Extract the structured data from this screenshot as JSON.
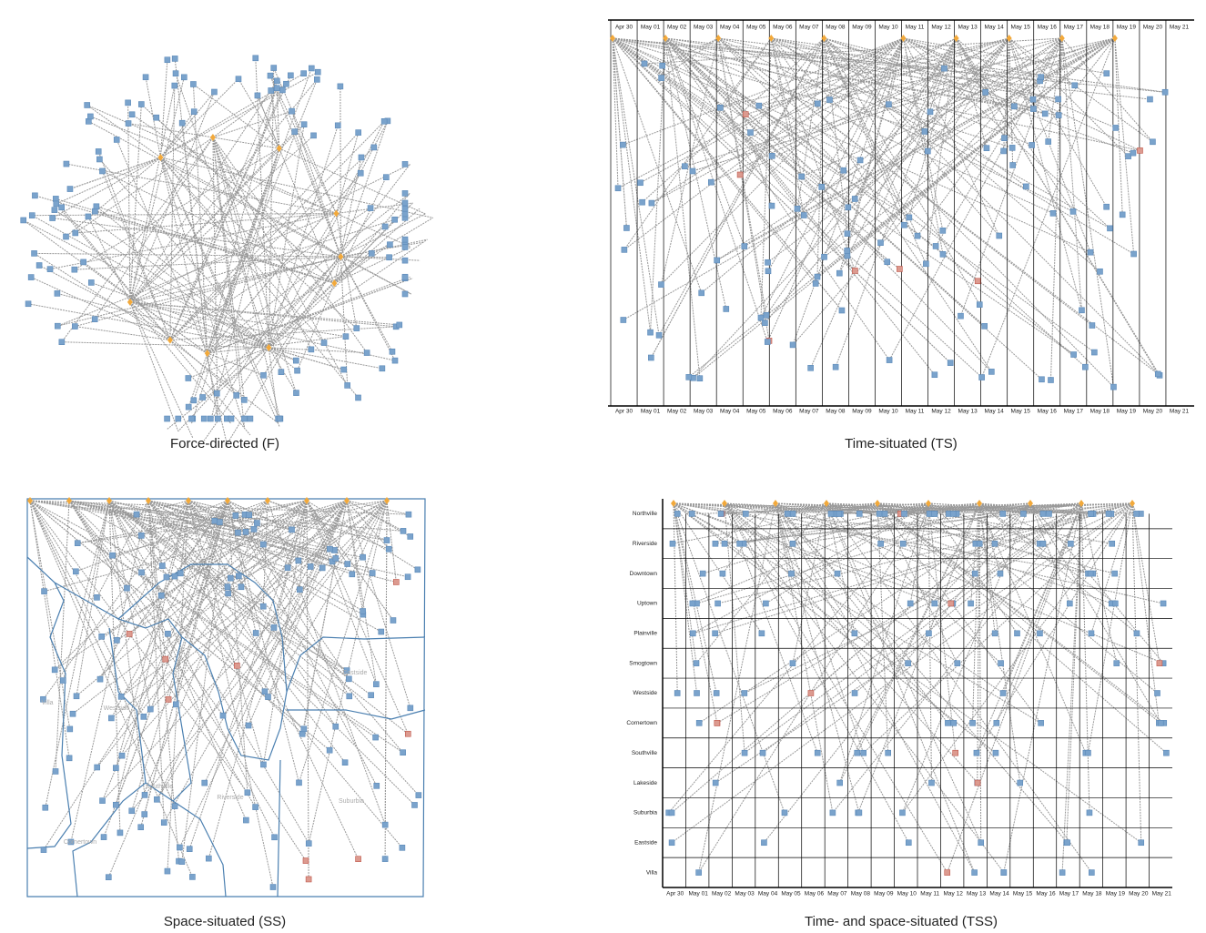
{
  "panels": [
    {
      "caption": "Force-directed (F)"
    },
    {
      "caption": "Time-situated (TS)",
      "dates": [
        "Apr 30",
        "May 01",
        "May 02",
        "May 03",
        "May 04",
        "May 05",
        "May 06",
        "May 07",
        "May 08",
        "May 09",
        "May 10",
        "May 11",
        "May 12",
        "May 13",
        "May 14",
        "May 15",
        "May 16",
        "May 17",
        "May 18",
        "May 19",
        "May 20",
        "May 21"
      ]
    },
    {
      "caption": "Space-situated (SS)",
      "regions": [
        "Villa",
        "Westside",
        "Southville",
        "Riverside",
        "Suburbia",
        "Cornertown",
        "Eastside"
      ]
    },
    {
      "caption": "Time- and space-situated (TSS)",
      "dates": [
        "Apr 30",
        "May 01",
        "May 02",
        "May 03",
        "May 04",
        "May 05",
        "May 06",
        "May 07",
        "May 08",
        "May 09",
        "May 10",
        "May 11",
        "May 12",
        "May 13",
        "May 14",
        "May 15",
        "May 16",
        "May 17",
        "May 18",
        "May 19",
        "May 20",
        "May 21"
      ],
      "locations": [
        "Northville",
        "Riverside",
        "Downtown",
        "Uptown",
        "Plainville",
        "Smogtown",
        "Westside",
        "Cornertown",
        "Southville",
        "Lakeside",
        "Suburbia",
        "Eastside",
        "Villa"
      ]
    }
  ]
}
